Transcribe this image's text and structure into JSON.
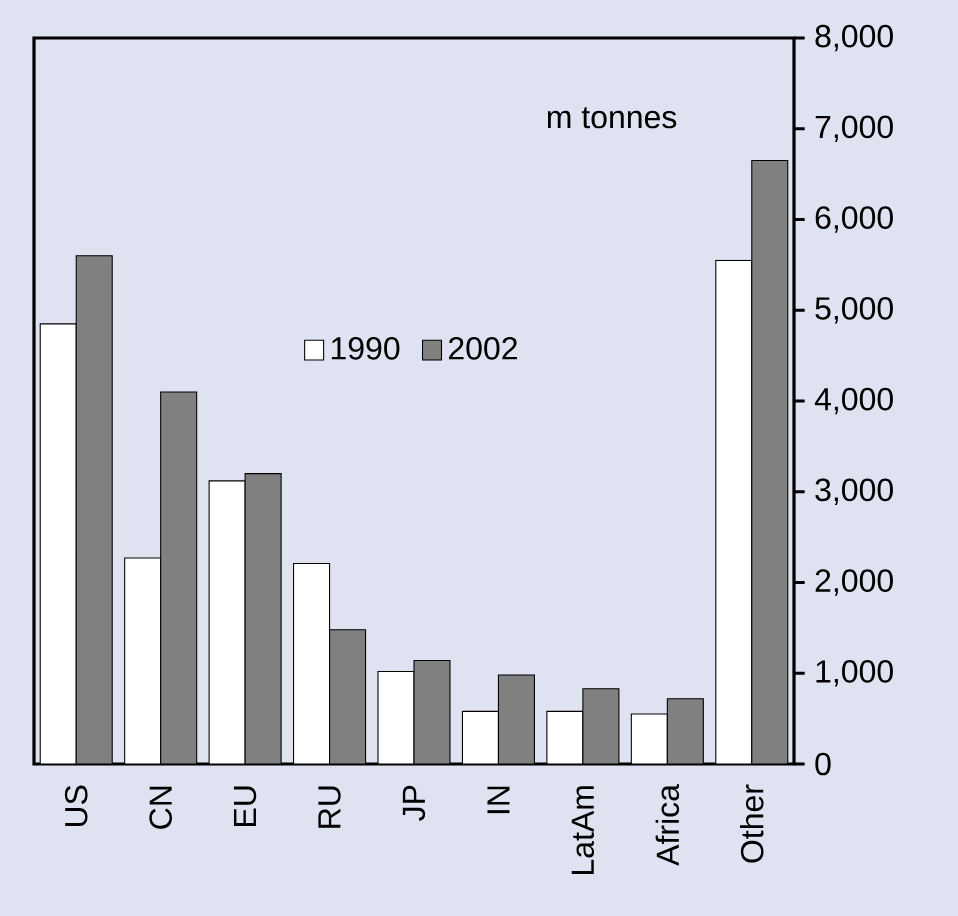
{
  "chart_data": {
    "type": "bar",
    "categories": [
      "US",
      "CN",
      "EU",
      "RU",
      "JP",
      "IN",
      "LatAm",
      "Africa",
      "Other"
    ],
    "series": [
      {
        "name": "1990",
        "color": "#ffffff",
        "values": [
          4850,
          2270,
          3120,
          2210,
          1020,
          580,
          580,
          550,
          5550
        ]
      },
      {
        "name": "2002",
        "color": "#808080",
        "values": [
          5600,
          4100,
          3200,
          1480,
          1140,
          980,
          830,
          720,
          6650
        ]
      }
    ],
    "ylim": [
      0,
      8000
    ],
    "yticks": [
      0,
      {
        "value": 1000,
        "label": "1,000"
      },
      {
        "value": 2000,
        "label": "2,000"
      },
      {
        "value": 3000,
        "label": "3,000"
      },
      {
        "value": 4000,
        "label": "4,000"
      },
      {
        "value": 5000,
        "label": "5,000"
      },
      {
        "value": 6000,
        "label": "6,000"
      },
      {
        "value": 7000,
        "label": "7,000"
      },
      {
        "value": 8000,
        "label": "8,000"
      }
    ],
    "legend": "center",
    "annotations": [
      "m tonnes"
    ]
  }
}
